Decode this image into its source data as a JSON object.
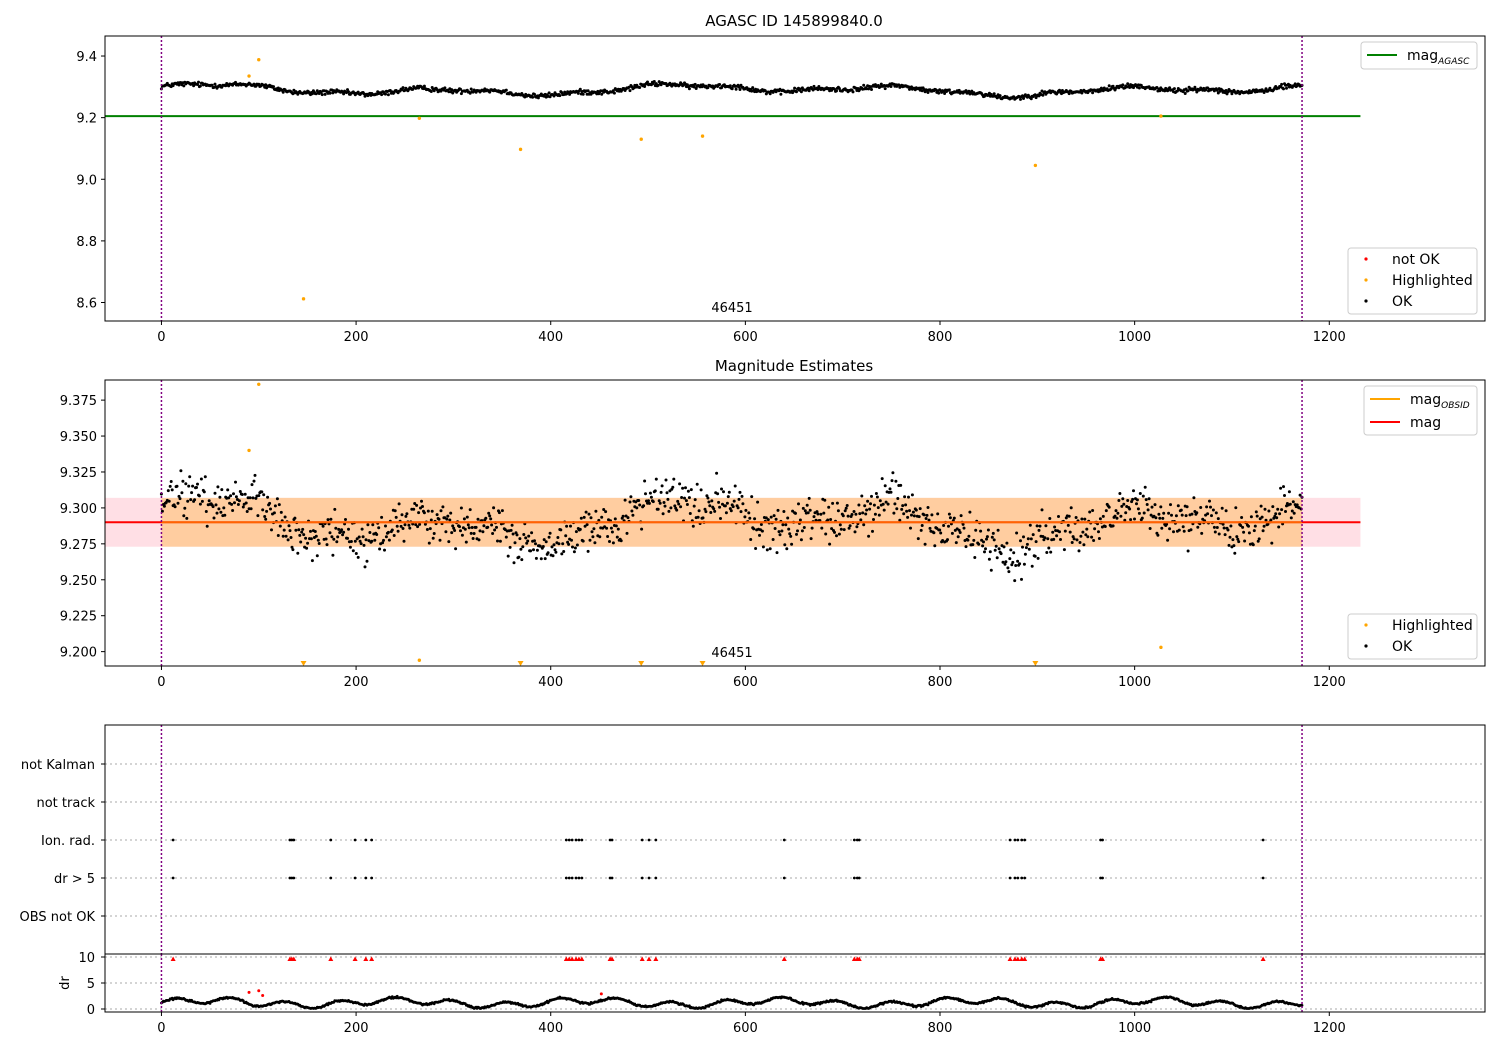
{
  "chart_data": [
    {
      "type": "scatter",
      "title": "AGASC ID 145899840.0",
      "annotation": "46451",
      "xticks": [
        "0",
        "200",
        "400",
        "600",
        "800",
        "1000",
        "1200"
      ],
      "yticks": [
        "9.4",
        "9.2",
        "9.0",
        "8.8",
        "8.6"
      ],
      "xlim": [
        -58,
        1360
      ],
      "ylim": [
        8.54,
        9.465
      ],
      "grid": false,
      "vlines": [
        0,
        1172
      ],
      "hline": {
        "y": 9.205,
        "color": "#008000",
        "x_end": 1232
      },
      "series": [
        {
          "name": "not OK",
          "color": "#ff0000",
          "values": []
        },
        {
          "name": "Highlighted",
          "color": "#ffa500",
          "points": [
            [
              90,
              9.335
            ],
            [
              100,
              9.388
            ],
            [
              146,
              8.612
            ],
            [
              265,
              9.198
            ],
            [
              369,
              9.097
            ],
            [
              493,
              9.13
            ],
            [
              556,
              9.14
            ],
            [
              898,
              9.045
            ],
            [
              1027,
              9.205
            ]
          ]
        },
        {
          "name": "OK",
          "color": "#000000",
          "n": 1172,
          "x_range": [
            0,
            1172
          ],
          "level_mean": 9.29,
          "spread": 0.012
        }
      ],
      "legend_top": {
        "label": "mag",
        "subscript": "AGASC",
        "position": "top-right"
      },
      "legend_bottom": {
        "entries": [
          "not OK",
          "Highlighted",
          "OK"
        ],
        "position": "bottom-right"
      }
    },
    {
      "type": "scatter",
      "title": "Magnitude Estimates",
      "annotation": "46451",
      "xticks": [
        "0",
        "200",
        "400",
        "600",
        "800",
        "1000",
        "1200"
      ],
      "yticks": [
        "9.375",
        "9.350",
        "9.325",
        "9.300",
        "9.275",
        "9.250",
        "9.225",
        "9.200"
      ],
      "xlim": [
        -58,
        1360
      ],
      "ylim": [
        9.19,
        9.389
      ],
      "grid": false,
      "vlines": [
        0,
        1172
      ],
      "mag_line": {
        "y": 9.29,
        "color": "#ff0000"
      },
      "mag_obsid_band": {
        "y_low": 9.273,
        "y_high": 9.307,
        "x_end": 1172,
        "color": "#ffa500"
      },
      "mag_band": {
        "y_low": 9.273,
        "y_high": 9.307,
        "x_end": 1232,
        "color": "#ffc0cb"
      },
      "series": [
        {
          "name": "Highlighted",
          "color": "#ffa500",
          "points": [
            [
              90,
              9.34
            ],
            [
              100,
              9.386
            ],
            [
              265,
              9.194
            ],
            [
              1027,
              9.203
            ]
          ],
          "below_range_x": [
            146,
            369,
            493,
            556,
            898
          ]
        },
        {
          "name": "OK",
          "color": "#000000",
          "n": 1172,
          "x_range": [
            0,
            1172
          ],
          "level_mean": 9.29,
          "spread": 0.012
        }
      ],
      "legend_top": {
        "entries": [
          {
            "label": "mag",
            "subscript": "OBSID",
            "color": "#ffa500"
          },
          {
            "label": "mag",
            "color": "#ff0000"
          }
        ],
        "position": "top-right"
      },
      "legend_bottom": {
        "entries": [
          "Highlighted",
          "OK"
        ],
        "position": "bottom-right"
      }
    },
    {
      "type": "scatter",
      "category_labels": [
        "not Kalman",
        "not track",
        "Ion. rad.",
        "dr > 5",
        "OBS not OK"
      ],
      "flag_x": {
        "not Kalman": [],
        "not track": [],
        "Ion. rad.": [
          12,
          132,
          134,
          136,
          174,
          199,
          210,
          216,
          416,
          419,
          422,
          426,
          429,
          432,
          461,
          463,
          494,
          501,
          508,
          640,
          712,
          715,
          717,
          872,
          877,
          880,
          884,
          887,
          965,
          967,
          1132
        ],
        "dr > 5": [
          12,
          132,
          134,
          136,
          174,
          199,
          210,
          216,
          416,
          419,
          422,
          426,
          429,
          432,
          461,
          463,
          494,
          501,
          508,
          640,
          712,
          715,
          717,
          872,
          877,
          880,
          884,
          887,
          965,
          967,
          1132
        ],
        "OBS not OK": []
      },
      "vlines": [
        0,
        1172
      ]
    },
    {
      "type": "scatter",
      "ylabel": "dr",
      "yticks": [
        "10",
        "5",
        "0"
      ],
      "xticks": [
        "0",
        "200",
        "400",
        "600",
        "800",
        "1000",
        "1200"
      ],
      "xlim": [
        -58,
        1360
      ],
      "ylim": [
        -0.5,
        10.5
      ],
      "vlines": [
        0,
        1172
      ],
      "over_limit_x": [
        12,
        132,
        134,
        136,
        174,
        199,
        210,
        216,
        416,
        419,
        422,
        426,
        429,
        432,
        461,
        463,
        494,
        501,
        508,
        640,
        712,
        715,
        717,
        872,
        877,
        880,
        884,
        887,
        965,
        967,
        1132
      ],
      "red_points": [
        [
          90,
          3.2
        ],
        [
          100,
          3.5
        ],
        [
          104,
          2.6
        ],
        [
          452,
          2.9
        ]
      ],
      "series": [
        {
          "name": "dr",
          "n": 1172,
          "x_range": [
            0,
            1172
          ],
          "level_mean": 1.2,
          "spread": 0.6
        }
      ]
    }
  ]
}
